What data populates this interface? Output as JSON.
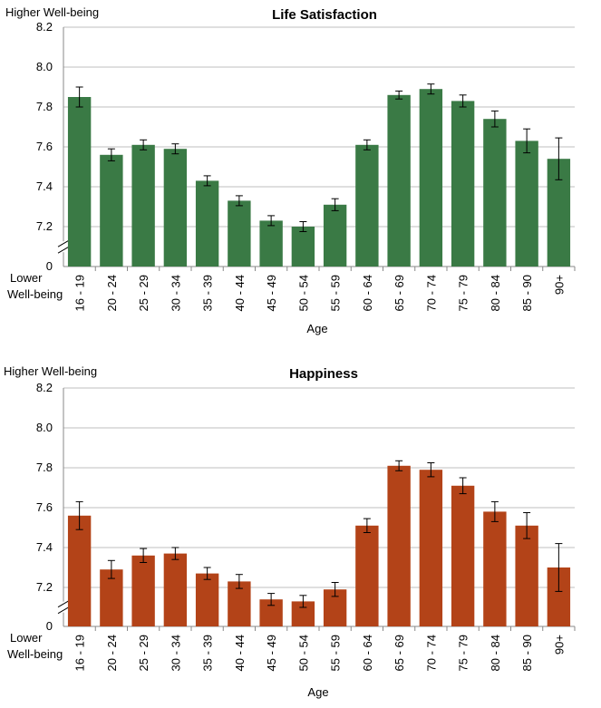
{
  "chart_data": [
    {
      "type": "bar",
      "title": "Life Satisfaction",
      "ylabel_top": "Higher Well-being",
      "ylabel_bottom": [
        "Lower",
        "Well-being"
      ],
      "xlabel": "Age",
      "color": "#3a7a45",
      "yticks": [
        "8.2",
        "8.0",
        "7.8",
        "7.6",
        "7.4",
        "7.2",
        "0"
      ],
      "ylim": [
        7.0,
        8.2
      ],
      "axis_break": true,
      "grid": true,
      "categories": [
        "16 - 19",
        "20 - 24",
        "25 - 29",
        "30 - 34",
        "35 - 39",
        "40 - 44",
        "45 - 49",
        "50 - 54",
        "55 - 59",
        "60 - 64",
        "65 - 69",
        "70 - 74",
        "75 - 79",
        "80 - 84",
        "85 - 90",
        "90+"
      ],
      "values": [
        7.85,
        7.56,
        7.61,
        7.59,
        7.43,
        7.33,
        7.23,
        7.2,
        7.31,
        7.61,
        7.86,
        7.89,
        7.83,
        7.74,
        7.63,
        7.54
      ],
      "errors": [
        0.05,
        0.03,
        0.025,
        0.025,
        0.025,
        0.025,
        0.025,
        0.025,
        0.03,
        0.025,
        0.02,
        0.025,
        0.03,
        0.04,
        0.06,
        0.105
      ]
    },
    {
      "type": "bar",
      "title": "Happiness",
      "ylabel_top": "Higher Well-being",
      "ylabel_bottom": [
        "Lower",
        "Well-being"
      ],
      "xlabel": "Age",
      "color": "#b34318",
      "yticks": [
        "8.2",
        "8.0",
        "7.8",
        "7.6",
        "7.4",
        "7.2",
        "0"
      ],
      "ylim": [
        7.0,
        8.2
      ],
      "axis_break": true,
      "grid": true,
      "categories": [
        "16 - 19",
        "20 - 24",
        "25 - 29",
        "30 - 34",
        "35 - 39",
        "40 - 44",
        "45 - 49",
        "50 - 54",
        "55 - 59",
        "60 - 64",
        "65 - 69",
        "70 - 74",
        "75 - 79",
        "80 - 84",
        "85 - 90",
        "90+"
      ],
      "values": [
        7.56,
        7.29,
        7.36,
        7.37,
        7.27,
        7.23,
        7.14,
        7.13,
        7.19,
        7.51,
        7.81,
        7.79,
        7.71,
        7.58,
        7.51,
        7.3
      ],
      "errors": [
        0.07,
        0.045,
        0.035,
        0.03,
        0.03,
        0.035,
        0.03,
        0.03,
        0.035,
        0.035,
        0.025,
        0.035,
        0.04,
        0.05,
        0.065,
        0.12
      ]
    }
  ]
}
